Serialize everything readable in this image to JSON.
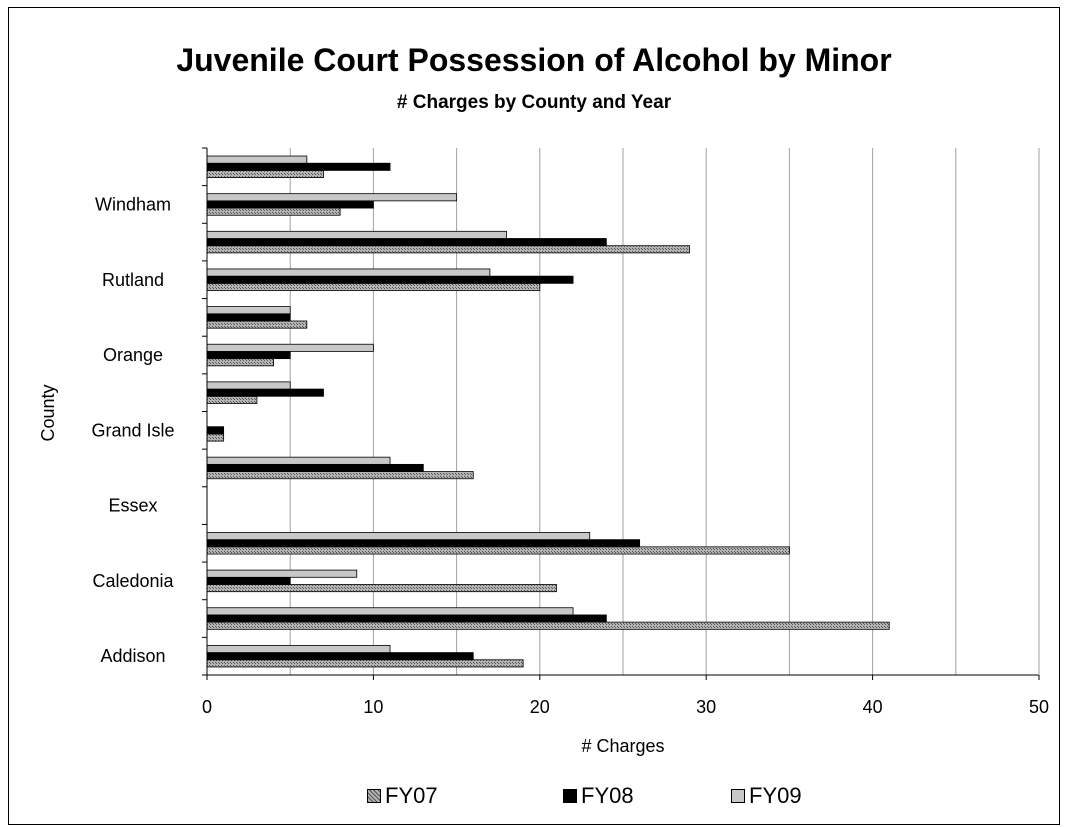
{
  "chart_data": {
    "type": "bar",
    "orientation": "horizontal",
    "title": "Juvenile Court Possession of Alcohol by Minor",
    "subtitle": "# Charges by County and Year",
    "xlabel": "# Charges",
    "ylabel": "County",
    "xlim": [
      0,
      50
    ],
    "xticks": [
      0,
      10,
      20,
      30,
      40,
      50
    ],
    "grid": "vertical",
    "legend_position": "bottom",
    "categories": [
      "Addison",
      "",
      "Caledonia",
      "",
      "Essex",
      "",
      "Grand Isle",
      "",
      "Orange",
      "",
      "Rutland",
      "",
      "Windham",
      ""
    ],
    "series": [
      {
        "name": "FY07",
        "color": "#9a9a9a",
        "pattern": "hatch",
        "values": [
          19,
          41,
          21,
          35,
          0,
          16,
          1,
          3,
          4,
          6,
          20,
          29,
          8,
          7
        ]
      },
      {
        "name": "FY08",
        "color": "#000000",
        "pattern": "solid",
        "values": [
          16,
          24,
          5,
          26,
          0,
          13,
          1,
          7,
          5,
          5,
          22,
          24,
          10,
          11
        ]
      },
      {
        "name": "FY09",
        "color": "#c8c8c8",
        "pattern": "solid",
        "values": [
          11,
          22,
          9,
          23,
          0,
          11,
          0,
          5,
          10,
          5,
          17,
          18,
          15,
          6
        ]
      }
    ]
  }
}
